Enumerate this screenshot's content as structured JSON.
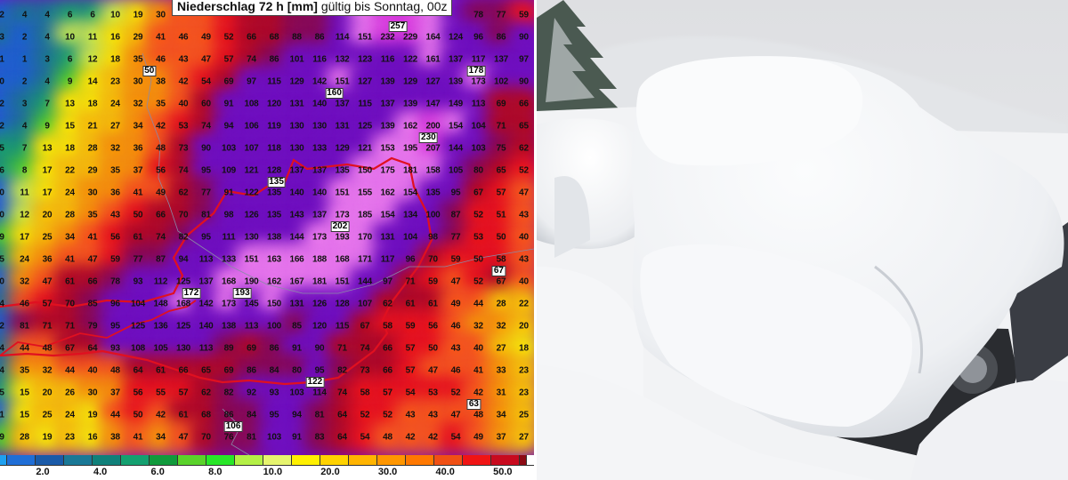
{
  "map": {
    "title_bold": "Niederschlag 72 h [mm]",
    "title_rest": " gültig bis Sonntag, 00z",
    "grid": [
      [
        "2",
        "4",
        "4",
        "6",
        "6",
        "10",
        "19",
        "30",
        "",
        "",
        "",
        "",
        "",
        "",
        "",
        "",
        "",
        "",
        "",
        "",
        "",
        "78",
        "77",
        "59"
      ],
      [
        "3",
        "2",
        "4",
        "10",
        "11",
        "16",
        "29",
        "41",
        "46",
        "49",
        "52",
        "66",
        "68",
        "88",
        "86",
        "114",
        "151",
        "232",
        "229",
        "164",
        "124",
        "96",
        "86",
        "90"
      ],
      [
        "1",
        "1",
        "3",
        "6",
        "12",
        "18",
        "35",
        "46",
        "43",
        "47",
        "57",
        "74",
        "86",
        "101",
        "116",
        "132",
        "123",
        "116",
        "122",
        "161",
        "137",
        "117",
        "137",
        "97"
      ],
      [
        "0",
        "2",
        "4",
        "9",
        "14",
        "23",
        "30",
        "38",
        "42",
        "54",
        "69",
        "97",
        "115",
        "129",
        "142",
        "151",
        "127",
        "139",
        "129",
        "127",
        "139",
        "173",
        "102",
        "90"
      ],
      [
        "2",
        "3",
        "7",
        "13",
        "18",
        "24",
        "32",
        "35",
        "40",
        "60",
        "91",
        "108",
        "120",
        "131",
        "140",
        "137",
        "115",
        "137",
        "139",
        "147",
        "149",
        "113",
        "69",
        "66"
      ],
      [
        "2",
        "4",
        "9",
        "15",
        "21",
        "27",
        "34",
        "42",
        "53",
        "74",
        "94",
        "106",
        "119",
        "130",
        "130",
        "131",
        "125",
        "139",
        "162",
        "200",
        "154",
        "104",
        "71",
        "65"
      ],
      [
        "5",
        "7",
        "13",
        "18",
        "28",
        "32",
        "36",
        "48",
        "73",
        "90",
        "103",
        "107",
        "118",
        "130",
        "133",
        "129",
        "121",
        "153",
        "195",
        "207",
        "144",
        "103",
        "75",
        "62"
      ],
      [
        "6",
        "8",
        "17",
        "22",
        "29",
        "35",
        "37",
        "56",
        "74",
        "95",
        "109",
        "121",
        "128",
        "137",
        "137",
        "135",
        "150",
        "175",
        "181",
        "158",
        "105",
        "80",
        "65",
        "52"
      ],
      [
        "0",
        "11",
        "17",
        "24",
        "30",
        "36",
        "41",
        "49",
        "62",
        "77",
        "91",
        "122",
        "135",
        "140",
        "140",
        "151",
        "155",
        "162",
        "154",
        "135",
        "95",
        "67",
        "57",
        "47"
      ],
      [
        "0",
        "12",
        "20",
        "28",
        "35",
        "43",
        "50",
        "66",
        "70",
        "81",
        "98",
        "126",
        "135",
        "143",
        "137",
        "173",
        "185",
        "154",
        "134",
        "100",
        "87",
        "52",
        "51",
        "43"
      ],
      [
        "9",
        "17",
        "25",
        "34",
        "41",
        "56",
        "61",
        "74",
        "82",
        "95",
        "111",
        "130",
        "138",
        "144",
        "173",
        "193",
        "170",
        "131",
        "104",
        "98",
        "77",
        "53",
        "50",
        "40"
      ],
      [
        "5",
        "24",
        "36",
        "41",
        "47",
        "59",
        "77",
        "87",
        "94",
        "113",
        "133",
        "151",
        "163",
        "166",
        "188",
        "168",
        "171",
        "117",
        "96",
        "70",
        "59",
        "50",
        "58",
        "43"
      ],
      [
        "0",
        "32",
        "47",
        "61",
        "66",
        "78",
        "93",
        "112",
        "125",
        "137",
        "168",
        "190",
        "162",
        "167",
        "181",
        "151",
        "144",
        "97",
        "71",
        "59",
        "47",
        "52",
        "67",
        "40"
      ],
      [
        "4",
        "46",
        "57",
        "70",
        "85",
        "96",
        "104",
        "148",
        "168",
        "142",
        "173",
        "145",
        "150",
        "131",
        "126",
        "128",
        "107",
        "62",
        "61",
        "61",
        "49",
        "44",
        "28",
        "22"
      ],
      [
        "2",
        "81",
        "71",
        "71",
        "79",
        "95",
        "125",
        "136",
        "125",
        "140",
        "138",
        "113",
        "100",
        "85",
        "120",
        "115",
        "67",
        "58",
        "59",
        "56",
        "46",
        "32",
        "32",
        "20"
      ],
      [
        "4",
        "44",
        "48",
        "67",
        "64",
        "93",
        "108",
        "105",
        "130",
        "113",
        "89",
        "69",
        "86",
        "91",
        "90",
        "71",
        "74",
        "66",
        "57",
        "50",
        "43",
        "40",
        "27",
        "18"
      ],
      [
        "4",
        "35",
        "32",
        "44",
        "40",
        "48",
        "64",
        "61",
        "66",
        "65",
        "69",
        "86",
        "84",
        "80",
        "95",
        "82",
        "73",
        "66",
        "57",
        "47",
        "46",
        "41",
        "33",
        "23"
      ],
      [
        "5",
        "15",
        "20",
        "26",
        "30",
        "37",
        "56",
        "55",
        "57",
        "62",
        "82",
        "92",
        "93",
        "103",
        "114",
        "74",
        "58",
        "57",
        "54",
        "53",
        "52",
        "42",
        "31",
        "23"
      ],
      [
        "1",
        "15",
        "25",
        "24",
        "19",
        "44",
        "50",
        "42",
        "61",
        "68",
        "86",
        "84",
        "95",
        "94",
        "81",
        "64",
        "52",
        "52",
        "43",
        "43",
        "47",
        "48",
        "34",
        "25"
      ],
      [
        "9",
        "28",
        "19",
        "23",
        "16",
        "38",
        "41",
        "34",
        "47",
        "70",
        "76",
        "81",
        "103",
        "91",
        "83",
        "64",
        "54",
        "48",
        "42",
        "42",
        "54",
        "49",
        "37",
        "27"
      ]
    ],
    "max_labels": [
      {
        "text": "257",
        "row": 0.8,
        "col": 17.45
      },
      {
        "text": "50",
        "row": 2.1,
        "col": 6.5
      },
      {
        "text": "160",
        "row": 3.2,
        "col": 14.65
      },
      {
        "text": "178",
        "row": 2.7,
        "col": 20.9
      },
      {
        "text": "230",
        "row": 5.55,
        "col": 18.8
      },
      {
        "text": "135",
        "row": 7.95,
        "col": 12.1
      },
      {
        "text": "202",
        "row": 9.6,
        "col": 14.9
      },
      {
        "text": "193",
        "row": 12.2,
        "col": 10.6
      },
      {
        "text": "172",
        "row": 12.85,
        "col": 8.35
      },
      {
        "text": "67",
        "row": 11.95,
        "col": 21.9
      },
      {
        "text": "122",
        "row": 16.8,
        "col": 13.8
      },
      {
        "text": "106",
        "row": 18.1,
        "col": 10.2
      },
      {
        "text": "63",
        "row": 17.7,
        "col": 20.8
      }
    ],
    "legend": {
      "colors": [
        "#1ea0f0",
        "#1f6ed6",
        "#1a5aa8",
        "#1a7896",
        "#10807a",
        "#14a070",
        "#109a3c",
        "#5ad22a",
        "#28e628",
        "#b4f046",
        "#e6f46e",
        "#fff000",
        "#ffd200",
        "#ffb400",
        "#ff9600",
        "#ff7800",
        "#f05014",
        "#f01414",
        "#c80a1e",
        "#8c0a14"
      ],
      "labels": [
        "2.0",
        "4.0",
        "6.0",
        "8.0",
        "10.0",
        "20.0",
        "30.0",
        "40.0",
        "50.0"
      ]
    }
  },
  "photo": {
    "subject": ""
  }
}
